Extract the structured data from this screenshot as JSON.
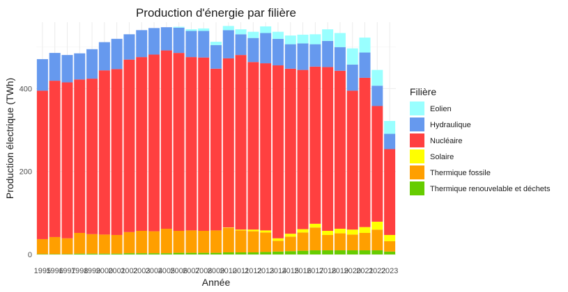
{
  "chart_data": {
    "type": "bar",
    "stacked": true,
    "title": "Production d'énergie par filière",
    "xlabel": "Année",
    "ylabel": "Production électrique (TWh)",
    "ylim": [
      0,
      560
    ],
    "yticks": [
      0,
      200,
      400
    ],
    "grid": true,
    "legend_title": "Filière",
    "legend_position": "right",
    "categories": [
      "1995",
      "1996",
      "1997",
      "1998",
      "1999",
      "2000",
      "2001",
      "2002",
      "2003",
      "2004",
      "2005",
      "2006",
      "2007",
      "2008",
      "2009",
      "2010",
      "2011",
      "2012",
      "2013",
      "2014",
      "2015",
      "2016",
      "2017",
      "2018",
      "2019",
      "2020",
      "2021",
      "2022",
      "2023"
    ],
    "series": [
      {
        "name": "Thermique renouvelable et déchets",
        "color": "#66cc00",
        "values": [
          1,
          1,
          1,
          2,
          2,
          2,
          2,
          3,
          3,
          3,
          3,
          4,
          4,
          4,
          4,
          5,
          5,
          5,
          6,
          7,
          8,
          9,
          10,
          10,
          10,
          10,
          10,
          10,
          7
        ]
      },
      {
        "name": "Thermique fossile",
        "color": "#ff9f00",
        "values": [
          36,
          41,
          38,
          50,
          47,
          46,
          45,
          51,
          54,
          53,
          59,
          53,
          54,
          53,
          54,
          59,
          53,
          51,
          47,
          26,
          35,
          44,
          55,
          37,
          41,
          38,
          42,
          50,
          25
        ]
      },
      {
        "name": "Solaire",
        "color": "#ffff00",
        "values": [
          0,
          0,
          0,
          0,
          0,
          0,
          0,
          0,
          0,
          0,
          0,
          0,
          0,
          0,
          0,
          1,
          2,
          4,
          5,
          6,
          7,
          8,
          9,
          10,
          11,
          12,
          14,
          19,
          15
        ]
      },
      {
        "name": "Nucléaire",
        "color": "#ff4040",
        "values": [
          358,
          377,
          376,
          370,
          375,
          396,
          400,
          416,
          419,
          426,
          430,
          429,
          418,
          418,
          390,
          408,
          421,
          404,
          403,
          417,
          398,
          384,
          379,
          395,
          381,
          335,
          360,
          279,
          207
        ]
      },
      {
        "name": "Hydraulique",
        "color": "#6699ee",
        "values": [
          76,
          67,
          66,
          63,
          71,
          68,
          73,
          61,
          65,
          64,
          56,
          61,
          63,
          64,
          57,
          68,
          50,
          58,
          73,
          64,
          59,
          64,
          54,
          63,
          57,
          63,
          61,
          49,
          37
        ]
      },
      {
        "name": "Eolien",
        "color": "#99ffff",
        "values": [
          0,
          0,
          0,
          0,
          0,
          0,
          0,
          0,
          0,
          0,
          0,
          2,
          4,
          6,
          8,
          10,
          12,
          15,
          16,
          17,
          21,
          21,
          24,
          28,
          34,
          39,
          36,
          38,
          31
        ]
      }
    ]
  }
}
